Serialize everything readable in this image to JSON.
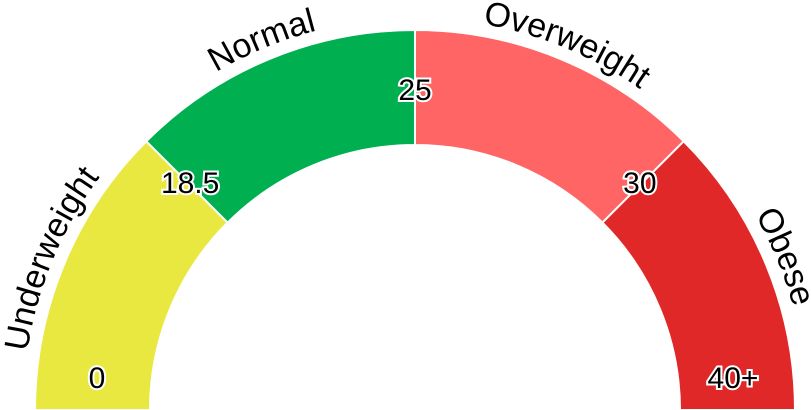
{
  "chart_data": {
    "type": "gauge",
    "segments": [
      {
        "name": "Underweight",
        "color": "#e9e841"
      },
      {
        "name": "Normal",
        "color": "#00b050"
      },
      {
        "name": "Overweight",
        "color": "#ff6565"
      },
      {
        "name": "Obese",
        "color": "#e02828"
      }
    ],
    "ticks": [
      0,
      18.5,
      25,
      30,
      {
        "value": 40,
        "label": "40+"
      }
    ]
  }
}
